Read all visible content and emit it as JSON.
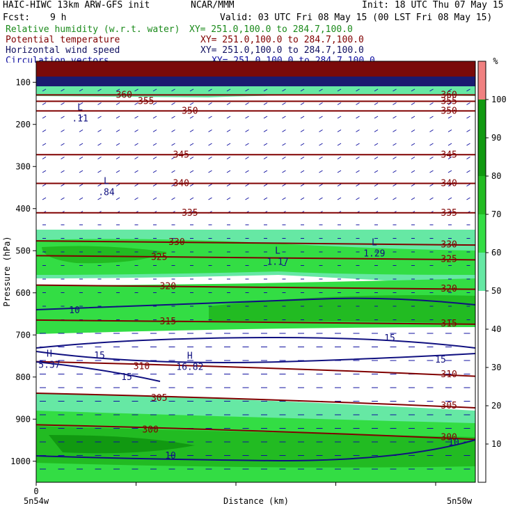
{
  "header": {
    "model": "HAIC-HIWC 13km ARW-GFS init",
    "org": "NCAR/MMM",
    "init": "Init: 18 UTC Thu 07 May 15",
    "fcst_label": "Fcst:",
    "fcst_value": "9 h",
    "valid": "Valid: 03 UTC Fri 08 May 15 (00 LST Fri 08 May 15)"
  },
  "fields": [
    {
      "name": "Relative humidity (w.r.t. water)",
      "xy": "XY= 251.0,100.0 to 284.7,100.0",
      "color": "#1a8a1a"
    },
    {
      "name": "Potential temperature",
      "xy": "XY= 251.0,100.0 to 284.7,100.0",
      "color": "#800000"
    },
    {
      "name": "Horizontal wind speed",
      "xy": "XY= 251.0,100.0 to 284.7,100.0",
      "color": "#101060"
    },
    {
      "name": "Circulation vectors",
      "xy": "XY= 251.0,100.0 to 284.7,100.0",
      "color": "#1010a0"
    }
  ],
  "colorbar": {
    "unit": "%",
    "labels": [
      "10",
      "20",
      "30",
      "40",
      "50",
      "60",
      "70",
      "80",
      "90",
      "100"
    ],
    "colors": [
      "#ffffff",
      "#ffffff",
      "#ffffff",
      "#ffffff",
      "#ffffff",
      "#66e8a4",
      "#33dd44",
      "#22bb22",
      "#119911",
      "#f08080"
    ]
  },
  "chart_data": {
    "type": "heatmap",
    "ylabel": "Pressure (hPa)",
    "xlabel": "Distance (km)",
    "y_ticks": [
      100,
      200,
      300,
      400,
      500,
      600,
      700,
      800,
      900,
      1000
    ],
    "ylim": [
      1050,
      50
    ],
    "x_left_label": "5n54w",
    "x_right_label": "5n50w",
    "x_zero_label": "0",
    "theta_contours": [
      {
        "value": "360",
        "p": 130
      },
      {
        "value": "355",
        "p": 145
      },
      {
        "value": "350",
        "p": 168
      },
      {
        "value": "345",
        "p": 272
      },
      {
        "value": "340",
        "p": 340
      },
      {
        "value": "335",
        "p": 410
      },
      {
        "value": "330",
        "p": 480
      },
      {
        "value": "325",
        "p": 515
      },
      {
        "value": "320",
        "p": 585
      },
      {
        "value": "315",
        "p": 668
      },
      {
        "value": "310",
        "p": 775
      },
      {
        "value": "305",
        "p": 850
      },
      {
        "value": "300",
        "p": 925
      }
    ],
    "wind_labels": [
      "10",
      "15",
      "15",
      "15",
      "15",
      "10",
      "10"
    ],
    "extrema": [
      {
        "kind": "L",
        "value": ".11",
        "p": 180,
        "x": 0.1
      },
      {
        "kind": "L",
        "value": ".84",
        "p": 355,
        "x": 0.16
      },
      {
        "kind": "L",
        "value": "1.17",
        "p": 520,
        "x": 0.55
      },
      {
        "kind": "L",
        "value": "1.29",
        "p": 500,
        "x": 0.77
      },
      {
        "kind": "H",
        "value": "5.37",
        "p": 765,
        "x": 0.03
      },
      {
        "kind": "H",
        "value": "16.82",
        "p": 770,
        "x": 0.35
      }
    ]
  }
}
